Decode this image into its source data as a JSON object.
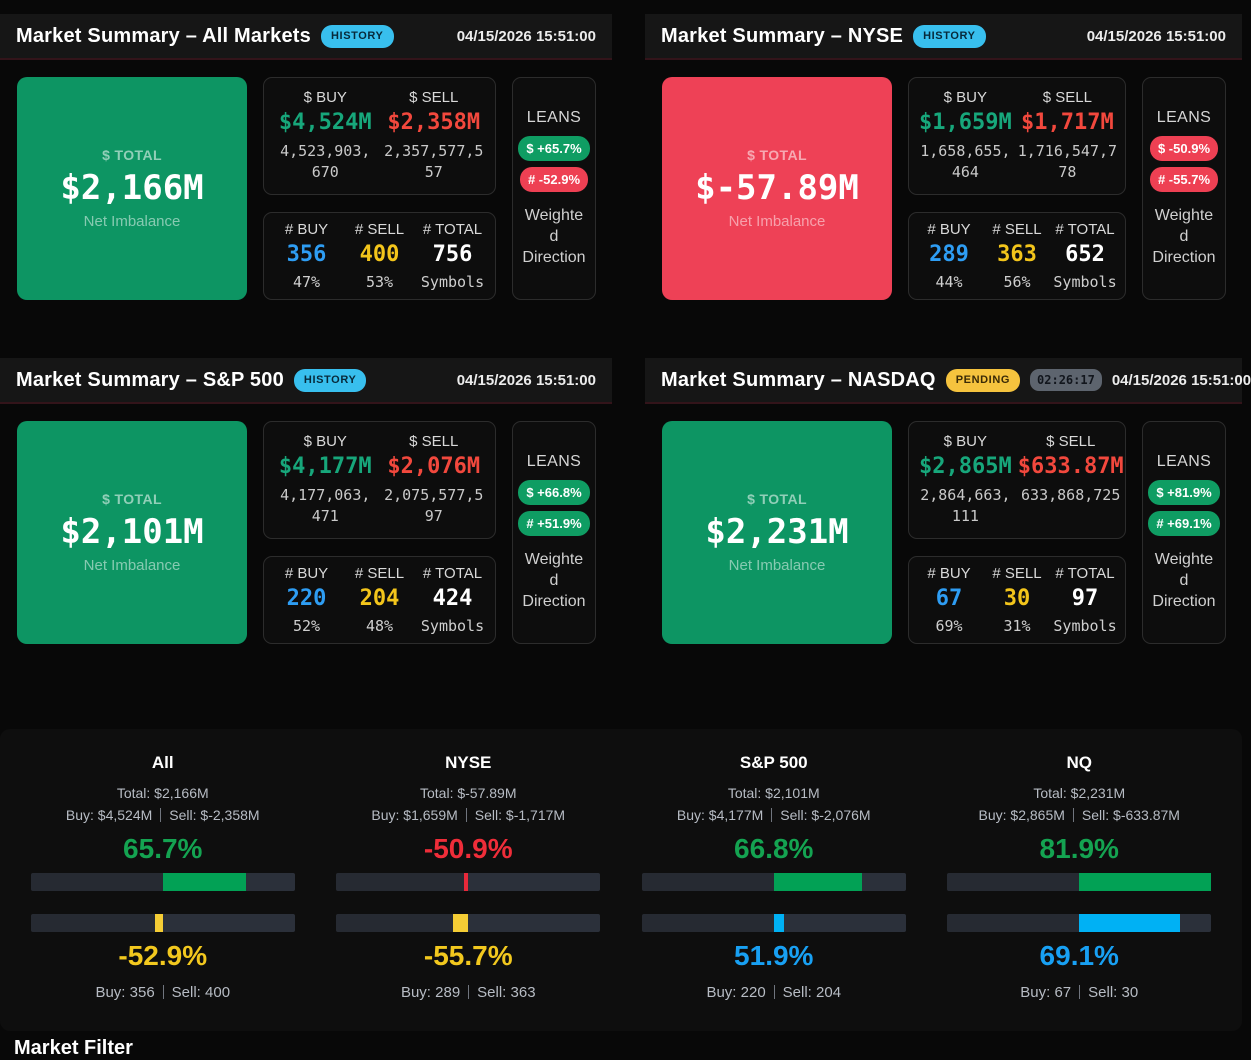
{
  "colors": {
    "green_tile": "#0d9563",
    "green_pill": "#0f9d63",
    "green_text": "#17a77b",
    "green_big": "#14a351",
    "green_bar": "#02a155",
    "red_tile": "#ee4156",
    "red_pill": "#ee4053",
    "red_text": "#f2483d",
    "red_big": "#ef2d39",
    "red_bar": "#e8293a",
    "blue_text": "#2e9df3",
    "blue_big": "#18a0f3",
    "blue_bar": "#00b1f4",
    "yellow_text": "#f3c51b",
    "yellow_big": "#f2c81e",
    "yellow_bar": "#f5cd35",
    "badge_history": "#38bfee",
    "badge_pending": "#f5c33e",
    "badge_timer": "#5d646e"
  },
  "panels": [
    {
      "title": "Market Summary – All Markets",
      "badge": "HISTORY",
      "badge_type": "history",
      "timer": null,
      "timestamp": "04/15/2026 15:51:00",
      "total": {
        "label": "$ TOTAL",
        "value": "$2,166M",
        "sub": "Net Imbalance",
        "positive": true
      },
      "dollar": {
        "buy_label": "$ BUY",
        "sell_label": "$ SELL",
        "buy_value": "$4,524M",
        "sell_value": "$2,358M",
        "buy_raw_lines": [
          "4,523,903,",
          "670"
        ],
        "sell_raw_lines": [
          "2,357,577,5",
          "57"
        ]
      },
      "counts": {
        "buy_label": "# BUY",
        "sell_label": "# SELL",
        "total_label": "# TOTAL",
        "buy": "356",
        "sell": "400",
        "total": "756",
        "buy_pct": "47%",
        "sell_pct": "53%",
        "total_sub": "Symbols"
      },
      "leans": {
        "title": "LEANS",
        "dollar_label": "$ +65.7%",
        "dollar_positive": true,
        "count_label": "# -52.9%",
        "count_positive": false,
        "caption_lines": [
          "Weighte",
          "d",
          "Direction"
        ]
      }
    },
    {
      "title": "Market Summary – NYSE",
      "badge": "HISTORY",
      "badge_type": "history",
      "timer": null,
      "timestamp": "04/15/2026 15:51:00",
      "total": {
        "label": "$ TOTAL",
        "value": "$-57.89M",
        "sub": "Net Imbalance",
        "positive": false
      },
      "dollar": {
        "buy_label": "$ BUY",
        "sell_label": "$ SELL",
        "buy_value": "$1,659M",
        "sell_value": "$1,717M",
        "buy_raw_lines": [
          "1,658,655,",
          "464"
        ],
        "sell_raw_lines": [
          "1,716,547,7",
          "78"
        ]
      },
      "counts": {
        "buy_label": "# BUY",
        "sell_label": "# SELL",
        "total_label": "# TOTAL",
        "buy": "289",
        "sell": "363",
        "total": "652",
        "buy_pct": "44%",
        "sell_pct": "56%",
        "total_sub": "Symbols"
      },
      "leans": {
        "title": "LEANS",
        "dollar_label": "$ -50.9%",
        "dollar_positive": false,
        "count_label": "# -55.7%",
        "count_positive": false,
        "caption_lines": [
          "Weighte",
          "d",
          "Direction"
        ]
      }
    },
    {
      "title": "Market Summary – S&P 500",
      "badge": "HISTORY",
      "badge_type": "history",
      "timer": null,
      "timestamp": "04/15/2026 15:51:00",
      "total": {
        "label": "$ TOTAL",
        "value": "$2,101M",
        "sub": "Net Imbalance",
        "positive": true
      },
      "dollar": {
        "buy_label": "$ BUY",
        "sell_label": "$ SELL",
        "buy_value": "$4,177M",
        "sell_value": "$2,076M",
        "buy_raw_lines": [
          "4,177,063,",
          "471"
        ],
        "sell_raw_lines": [
          "2,075,577,5",
          "97"
        ]
      },
      "counts": {
        "buy_label": "# BUY",
        "sell_label": "# SELL",
        "total_label": "# TOTAL",
        "buy": "220",
        "sell": "204",
        "total": "424",
        "buy_pct": "52%",
        "sell_pct": "48%",
        "total_sub": "Symbols"
      },
      "leans": {
        "title": "LEANS",
        "dollar_label": "$ +66.8%",
        "dollar_positive": true,
        "count_label": "# +51.9%",
        "count_positive": true,
        "caption_lines": [
          "Weighte",
          "d",
          "Direction"
        ]
      }
    },
    {
      "title": "Market Summary – NASDAQ",
      "badge": "PENDING",
      "badge_type": "pending",
      "timer": "02:26:17",
      "timestamp": "04/15/2026 15:51:00",
      "total": {
        "label": "$ TOTAL",
        "value": "$2,231M",
        "sub": "Net Imbalance",
        "positive": true
      },
      "dollar": {
        "buy_label": "$ BUY",
        "sell_label": "$ SELL",
        "buy_value": "$2,865M",
        "sell_value": "$633.87M",
        "buy_raw_lines": [
          "2,864,663,",
          "111"
        ],
        "sell_raw_lines": [
          "633,868,725",
          ""
        ]
      },
      "counts": {
        "buy_label": "# BUY",
        "sell_label": "# SELL",
        "total_label": "# TOTAL",
        "buy": "67",
        "sell": "30",
        "total": "97",
        "buy_pct": "69%",
        "sell_pct": "31%",
        "total_sub": "Symbols"
      },
      "leans": {
        "title": "LEANS",
        "dollar_label": "$ +81.9%",
        "dollar_positive": true,
        "count_label": "# +69.1%",
        "count_positive": true,
        "caption_lines": [
          "Weighte",
          "d",
          "Direction"
        ]
      }
    }
  ],
  "comparison": {
    "columns": [
      {
        "title": "All",
        "total_line": "Total: $2,166M",
        "dollar_buy": "Buy: $4,524M",
        "dollar_sell": "Sell: $-2,358M",
        "dollar_lean": 65.7,
        "dollar_lean_label": "65.7%",
        "count_lean": -52.9,
        "count_lean_label": "-52.9%",
        "count_buy": "Buy: 356",
        "count_sell": "Sell: 400"
      },
      {
        "title": "NYSE",
        "total_line": "Total: $-57.89M",
        "dollar_buy": "Buy: $1,659M",
        "dollar_sell": "Sell: $-1,717M",
        "dollar_lean": -50.9,
        "dollar_lean_label": "-50.9%",
        "count_lean": -55.7,
        "count_lean_label": "-55.7%",
        "count_buy": "Buy: 289",
        "count_sell": "Sell: 363"
      },
      {
        "title": "S&P 500",
        "total_line": "Total: $2,101M",
        "dollar_buy": "Buy: $4,177M",
        "dollar_sell": "Sell: $-2,076M",
        "dollar_lean": 66.8,
        "dollar_lean_label": "66.8%",
        "count_lean": 51.9,
        "count_lean_label": "51.9%",
        "count_buy": "Buy: 220",
        "count_sell": "Sell: 204"
      },
      {
        "title": "NQ",
        "total_line": "Total: $2,231M",
        "dollar_buy": "Buy: $2,865M",
        "dollar_sell": "Sell: $-633.87M",
        "dollar_lean": 81.9,
        "dollar_lean_label": "81.9%",
        "count_lean": 69.1,
        "count_lean_label": "69.1%",
        "count_buy": "Buy: 67",
        "count_sell": "Sell: 30"
      }
    ]
  },
  "footer": {
    "title": "Market Filter"
  }
}
